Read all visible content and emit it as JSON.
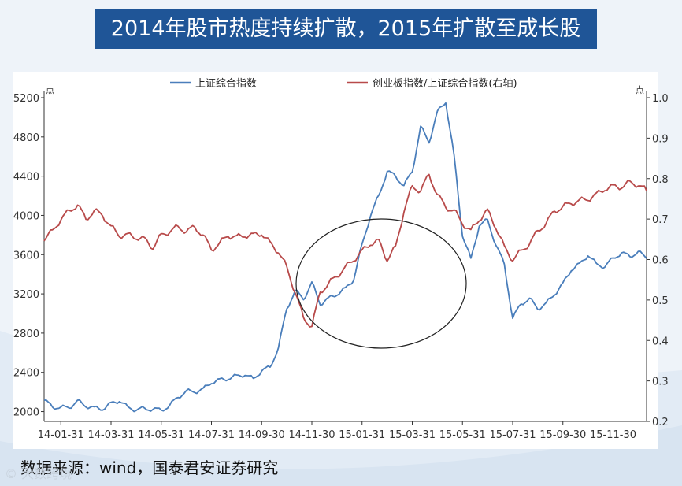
{
  "title": "2014年股市热度持续扩散，2015年扩散至成长股",
  "source": "数据来源：wind，国泰君安证券研究",
  "watermark": "© 大数跨境",
  "chart_data": {
    "type": "line",
    "left_unit": "点",
    "right_unit": "点",
    "series": [
      {
        "name": "上证综合指数",
        "axis": "left",
        "color": "#4a7ebb",
        "points": [
          [
            0.0,
            2115
          ],
          [
            0.5,
            2050
          ],
          [
            1.0,
            2040
          ],
          [
            1.5,
            2045
          ],
          [
            2.0,
            2105
          ],
          [
            2.5,
            2060
          ],
          [
            3.0,
            2035
          ],
          [
            3.5,
            2030
          ],
          [
            4.0,
            2080
          ],
          [
            4.5,
            2115
          ],
          [
            5.0,
            2040
          ],
          [
            5.5,
            2020
          ],
          [
            6.0,
            2030
          ],
          [
            6.5,
            2025
          ],
          [
            7.0,
            2015
          ],
          [
            7.5,
            2060
          ],
          [
            8.0,
            2150
          ],
          [
            8.5,
            2205
          ],
          [
            9.0,
            2205
          ],
          [
            9.5,
            2225
          ],
          [
            10.0,
            2300
          ],
          [
            10.5,
            2320
          ],
          [
            11.0,
            2340
          ],
          [
            11.5,
            2360
          ],
          [
            12.0,
            2380
          ],
          [
            12.5,
            2330
          ],
          [
            13.0,
            2420
          ],
          [
            13.5,
            2450
          ],
          [
            14.0,
            2650
          ],
          [
            14.5,
            3050
          ],
          [
            15.0,
            3230
          ],
          [
            15.5,
            3150
          ],
          [
            16.0,
            3310
          ],
          [
            16.5,
            3100
          ],
          [
            17.0,
            3150
          ],
          [
            17.5,
            3200
          ],
          [
            18.0,
            3250
          ],
          [
            18.5,
            3350
          ],
          [
            19.0,
            3700
          ],
          [
            19.5,
            4000
          ],
          [
            20.0,
            4200
          ],
          [
            20.5,
            4450
          ],
          [
            21.0,
            4400
          ],
          [
            21.5,
            4300
          ],
          [
            22.0,
            4450
          ],
          [
            22.5,
            4900
          ],
          [
            23.0,
            4750
          ],
          [
            23.5,
            5050
          ],
          [
            24.0,
            5160
          ],
          [
            24.5,
            4600
          ],
          [
            25.0,
            3800
          ],
          [
            25.5,
            3550
          ],
          [
            26.0,
            3900
          ],
          [
            26.5,
            3950
          ],
          [
            27.0,
            3700
          ],
          [
            27.5,
            3500
          ],
          [
            28.0,
            2950
          ],
          [
            28.5,
            3100
          ],
          [
            29.0,
            3150
          ],
          [
            29.5,
            3050
          ],
          [
            30.0,
            3100
          ],
          [
            30.5,
            3200
          ],
          [
            31.0,
            3300
          ],
          [
            31.5,
            3450
          ],
          [
            32.0,
            3500
          ],
          [
            32.5,
            3600
          ],
          [
            33.0,
            3500
          ],
          [
            33.5,
            3480
          ],
          [
            34.0,
            3560
          ],
          [
            34.5,
            3620
          ],
          [
            35.0,
            3580
          ],
          [
            35.5,
            3630
          ],
          [
            36.0,
            3560
          ]
        ]
      },
      {
        "name": "创业板指数/上证综合指数(右轴)",
        "axis": "right",
        "color": "#b84a4a",
        "points": [
          [
            0.0,
            0.65
          ],
          [
            0.5,
            0.67
          ],
          [
            1.0,
            0.7
          ],
          [
            1.5,
            0.72
          ],
          [
            2.0,
            0.735
          ],
          [
            2.5,
            0.7
          ],
          [
            3.0,
            0.72
          ],
          [
            3.5,
            0.71
          ],
          [
            4.0,
            0.68
          ],
          [
            4.5,
            0.66
          ],
          [
            5.0,
            0.66
          ],
          [
            5.5,
            0.655
          ],
          [
            6.0,
            0.65
          ],
          [
            6.5,
            0.63
          ],
          [
            7.0,
            0.66
          ],
          [
            7.5,
            0.67
          ],
          [
            8.0,
            0.68
          ],
          [
            8.5,
            0.67
          ],
          [
            9.0,
            0.68
          ],
          [
            9.5,
            0.66
          ],
          [
            10.0,
            0.625
          ],
          [
            10.5,
            0.64
          ],
          [
            11.0,
            0.66
          ],
          [
            11.5,
            0.655
          ],
          [
            12.0,
            0.66
          ],
          [
            12.5,
            0.66
          ],
          [
            13.0,
            0.665
          ],
          [
            13.5,
            0.64
          ],
          [
            14.0,
            0.62
          ],
          [
            14.5,
            0.58
          ],
          [
            15.0,
            0.52
          ],
          [
            15.5,
            0.455
          ],
          [
            16.0,
            0.435
          ],
          [
            16.5,
            0.52
          ],
          [
            17.0,
            0.54
          ],
          [
            17.5,
            0.56
          ],
          [
            18.0,
            0.58
          ],
          [
            18.5,
            0.6
          ],
          [
            19.0,
            0.62
          ],
          [
            19.5,
            0.64
          ],
          [
            20.0,
            0.645
          ],
          [
            20.5,
            0.6
          ],
          [
            21.0,
            0.63
          ],
          [
            21.5,
            0.72
          ],
          [
            22.0,
            0.78
          ],
          [
            22.5,
            0.77
          ],
          [
            23.0,
            0.81
          ],
          [
            23.5,
            0.76
          ],
          [
            24.0,
            0.73
          ],
          [
            24.5,
            0.72
          ],
          [
            25.0,
            0.69
          ],
          [
            25.5,
            0.67
          ],
          [
            26.0,
            0.7
          ],
          [
            26.5,
            0.72
          ],
          [
            27.0,
            0.68
          ],
          [
            27.5,
            0.63
          ],
          [
            28.0,
            0.6
          ],
          [
            28.5,
            0.62
          ],
          [
            29.0,
            0.64
          ],
          [
            29.5,
            0.67
          ],
          [
            30.0,
            0.69
          ],
          [
            30.5,
            0.72
          ],
          [
            31.0,
            0.73
          ],
          [
            31.5,
            0.74
          ],
          [
            32.0,
            0.745
          ],
          [
            32.5,
            0.75
          ],
          [
            33.0,
            0.76
          ],
          [
            33.5,
            0.775
          ],
          [
            34.0,
            0.78
          ],
          [
            34.5,
            0.78
          ],
          [
            35.0,
            0.79
          ],
          [
            35.5,
            0.785
          ],
          [
            36.0,
            0.77
          ]
        ]
      }
    ],
    "x_ticks": [
      "14-01-31",
      "14-03-31",
      "14-05-31",
      "14-07-31",
      "14-09-30",
      "14-11-30",
      "15-01-31",
      "15-03-31",
      "15-05-31",
      "15-07-31",
      "15-09-30",
      "15-11-30"
    ],
    "y_left": {
      "min": 1900,
      "max": 5200,
      "ticks": [
        2000,
        2400,
        2800,
        3200,
        3600,
        4000,
        4400,
        4800,
        5200
      ]
    },
    "y_right": {
      "min": 0.2,
      "max": 1.0,
      "ticks": [
        "0.2",
        "0.3",
        "0.4",
        "0.5",
        "0.6",
        "0.7",
        "0.8",
        "0.9",
        "1.0"
      ]
    },
    "x_range": [
      0,
      36
    ],
    "annotation": "ellipse highlighting 14-11 to 15-04 crossover",
    "legend_position": "top-center",
    "grid": false
  }
}
